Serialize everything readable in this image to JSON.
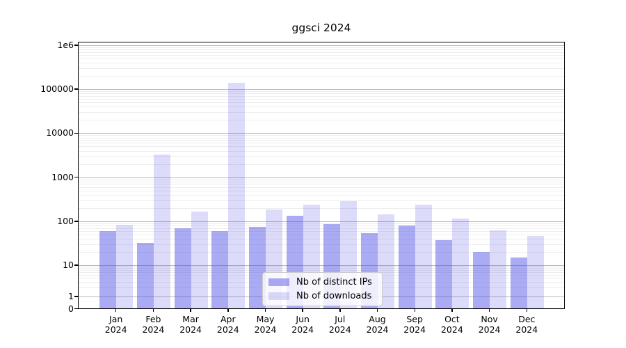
{
  "title": "ggsci 2024",
  "chart_data": {
    "type": "bar",
    "title": "ggsci 2024",
    "yscale": "symlog",
    "ylim": [
      0,
      1000000
    ],
    "y_tick_labels": [
      "1e6",
      "100000",
      "10000",
      "1000",
      "100",
      "10",
      "1",
      "0"
    ],
    "y_tick_values": [
      1000000,
      100000,
      10000,
      1000,
      100,
      10,
      1,
      0
    ],
    "categories": [
      "Jan",
      "Feb",
      "Mar",
      "Apr",
      "May",
      "Jun",
      "Jul",
      "Aug",
      "Sep",
      "Oct",
      "Nov",
      "Dec"
    ],
    "category_year": "2024",
    "series": [
      {
        "name": "Nb of distinct IPs",
        "color": "rgba(80,80,230,0.48)",
        "values": [
          60,
          32,
          68,
          60,
          73,
          131,
          85,
          54,
          79,
          37,
          20,
          15
        ]
      },
      {
        "name": "Nb of downloads",
        "color": "rgba(80,80,230,0.20)",
        "values": [
          82,
          3300,
          163,
          140000,
          185,
          235,
          290,
          145,
          235,
          115,
          62,
          47
        ]
      }
    ],
    "grid": "horizontal major and minor log gridlines",
    "legend_position": "lower center"
  },
  "colors": {
    "grid_major": "#b9b9b9",
    "grid_minor": "#ededed",
    "spine": "#000000",
    "background": "#ffffff"
  }
}
